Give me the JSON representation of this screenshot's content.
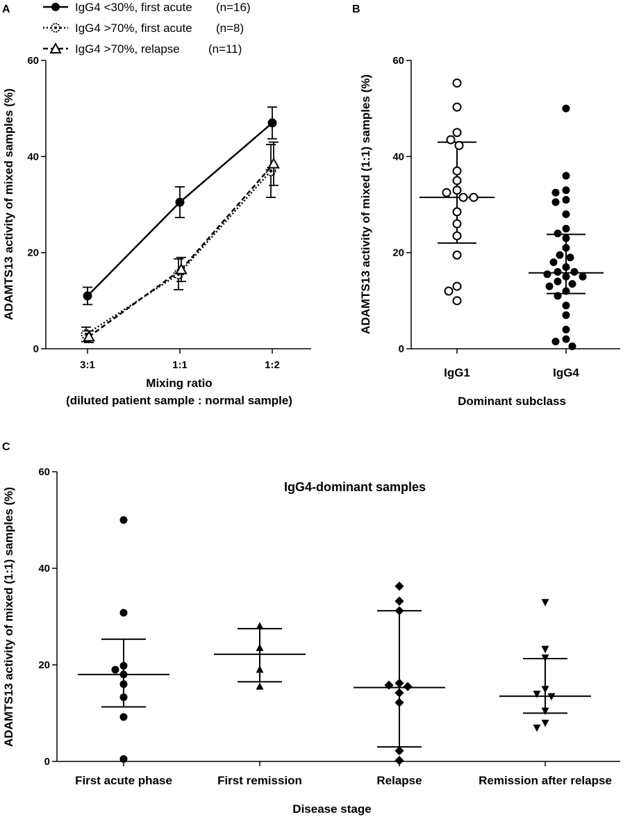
{
  "figure": {
    "panel_labels": [
      "A",
      "B",
      "C"
    ]
  },
  "chart_data": [
    {
      "type": "line",
      "panel": "A",
      "title": "",
      "xlabel": "Mixing ratio",
      "xlabel2": "(diluted patient sample : normal sample)",
      "ylabel": "ADAMTS13 activity of mixed samples (%)",
      "ylim": [
        0,
        60
      ],
      "yticks": [
        0,
        20,
        40,
        60
      ],
      "categories": [
        "3:1",
        "1:1",
        "1:2"
      ],
      "series": [
        {
          "name": "IgG4 <30%, first acute",
          "n": "(n=16)",
          "marker": "filled-circle",
          "line": "solid",
          "values": [
            11,
            30.5,
            47
          ],
          "err": [
            1.8,
            3.2,
            3.3
          ]
        },
        {
          "name": "IgG4 >70%, first acute",
          "n": "(n=8)",
          "marker": "dotted-circle",
          "line": "dotted",
          "values": [
            3,
            15.5,
            37
          ],
          "err": [
            1.5,
            3.2,
            5.5
          ]
        },
        {
          "name": "IgG4 >70%, relapse",
          "n": "(n=11)",
          "marker": "open-triangle",
          "line": "dashed",
          "values": [
            2.5,
            16.5,
            38.5
          ],
          "err": [
            1.2,
            2.5,
            4.5
          ]
        }
      ]
    },
    {
      "type": "scatter",
      "panel": "B",
      "title": "",
      "xlabel": "Dominant subclass",
      "ylabel": "ADAMTS13 activity of mixed (1:1) samples (%)",
      "ylim": [
        0,
        60
      ],
      "yticks": [
        0,
        20,
        40,
        60
      ],
      "groups": [
        {
          "name": "IgG1",
          "marker": "open-circle",
          "median": 31.5,
          "q1": 22,
          "q3": 43,
          "points": [
            55.3,
            50.3,
            45,
            43.5,
            42.3,
            37,
            35,
            33,
            32.5,
            31.5,
            31.5,
            28.5,
            26,
            23.5,
            19.5,
            13,
            12,
            10
          ]
        },
        {
          "name": "IgG4",
          "marker": "filled-circle",
          "median": 15.8,
          "q1": 11.5,
          "q3": 23.8,
          "points": [
            50,
            36,
            33,
            32.5,
            31,
            30.5,
            28,
            25,
            24,
            23,
            21,
            19.5,
            19,
            18,
            17,
            16,
            16,
            15.5,
            15,
            15,
            14,
            13.5,
            13,
            12,
            11,
            9,
            7,
            4,
            2,
            1.5,
            0.5
          ]
        }
      ]
    },
    {
      "type": "scatter",
      "panel": "C",
      "title": "IgG4-dominant samples",
      "xlabel": "Disease stage",
      "ylabel": "ADAMTS13 activity of mixed (1:1) samples (%)",
      "ylim": [
        0,
        60
      ],
      "yticks": [
        0,
        20,
        40,
        60
      ],
      "groups": [
        {
          "name": "First acute phase",
          "marker": "filled-circle",
          "median": 18,
          "q1": 11.3,
          "q3": 25.3,
          "points": [
            50,
            30.8,
            19.8,
            19,
            18,
            16,
            13.3,
            9.2,
            0.5
          ]
        },
        {
          "name": "First remission",
          "marker": "filled-triangle-up",
          "median": 22.2,
          "q1": 16.5,
          "q3": 27.5,
          "points": [
            28,
            23.5,
            19,
            15.5
          ]
        },
        {
          "name": "Relapse",
          "marker": "filled-diamond",
          "median": 15.3,
          "q1": 3,
          "q3": 31.2,
          "points": [
            36.3,
            33.2,
            31.2,
            16.2,
            15.8,
            15.5,
            14.2,
            12.2,
            2.2,
            0.2
          ]
        },
        {
          "name": "Remission after relapse",
          "marker": "filled-triangle-down",
          "median": 13.5,
          "q1": 10,
          "q3": 21.3,
          "points": [
            33,
            23.3,
            21.5,
            15,
            14,
            13.5,
            10.5,
            8,
            7
          ]
        }
      ]
    }
  ]
}
